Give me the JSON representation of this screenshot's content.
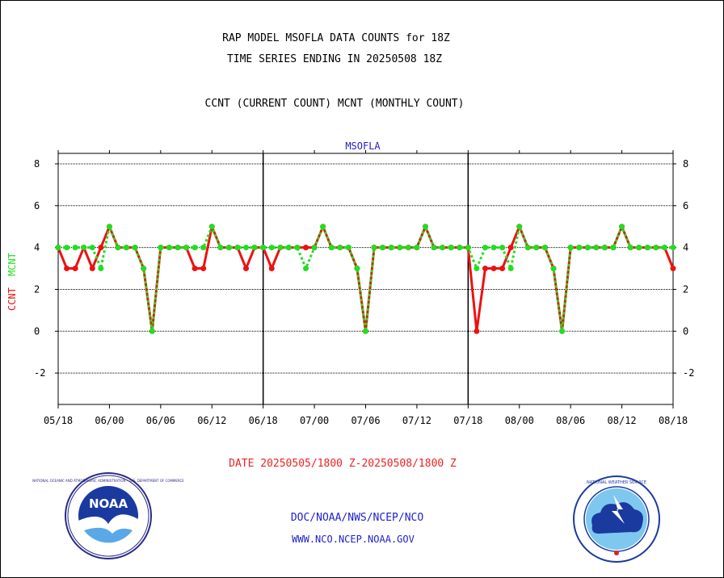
{
  "header": {
    "line1": "RAP MODEL MSOFLA DATA COUNTS for 18Z",
    "line2": "TIME SERIES ENDING IN 20250508 18Z",
    "line3": "CCNT (CURRENT COUNT) MCNT (MONTHLY COUNT)"
  },
  "footer": {
    "date_range": "DATE 20250505/1800 Z-20250508/1800 Z",
    "org_path": "DOC/NOAA/NWS/NCEP/NCO",
    "website": "WWW.NCO.NCEP.NOAA.GOV"
  },
  "logos": {
    "noaa_text": "NOAA",
    "noaa_ring": "NATIONAL OCEANIC AND ATMOSPHERIC ADMINISTRATION • U.S. DEPARTMENT OF COMMERCE",
    "nws_ring": "NATIONAL WEATHER SERVICE"
  },
  "colors": {
    "ccnt": "#ee1111",
    "mcnt": "#22dd22",
    "title_blue": "#2020cc",
    "date_red": "#ee2222"
  },
  "chart_data": {
    "type": "line",
    "title": "MSOFLA",
    "ylabel_series": [
      "CCNT",
      "MCNT"
    ],
    "ylim": [
      -3.5,
      8.5
    ],
    "yticks": [
      8,
      6,
      4,
      2,
      0,
      -2
    ],
    "xlim": [
      0,
      72
    ],
    "xticks": [
      0,
      6,
      12,
      18,
      24,
      30,
      36,
      42,
      48,
      54,
      60,
      66,
      72
    ],
    "xtick_labels": [
      "05/18",
      "06/00",
      "06/06",
      "06/12",
      "06/18",
      "07/00",
      "07/06",
      "07/12",
      "07/18",
      "08/00",
      "08/06",
      "08/12",
      "08/18"
    ],
    "grid": true,
    "day_separators": [
      24,
      48
    ],
    "series": [
      {
        "name": "CCNT",
        "x": [
          0,
          1,
          2,
          3,
          4,
          5,
          6,
          7,
          8,
          9,
          10,
          11,
          12,
          13,
          14,
          15,
          16,
          17,
          18,
          19,
          20,
          21,
          22,
          23,
          24,
          25,
          26,
          27,
          28,
          29,
          30,
          31,
          32,
          33,
          34,
          35,
          36,
          37,
          38,
          39,
          40,
          41,
          42,
          43,
          44,
          45,
          46,
          47,
          48,
          49,
          50,
          51,
          52,
          53,
          54,
          55,
          56,
          57,
          58,
          59,
          60,
          61,
          62,
          63,
          64,
          65,
          66,
          67,
          68,
          69,
          70,
          71,
          72
        ],
        "values": [
          4,
          3,
          3,
          4,
          3,
          4,
          5,
          4,
          4,
          4,
          3,
          0,
          4,
          4,
          4,
          4,
          3,
          3,
          5,
          4,
          4,
          4,
          3,
          4,
          4,
          3,
          4,
          4,
          4,
          4,
          4,
          5,
          4,
          4,
          4,
          3,
          0,
          4,
          4,
          4,
          4,
          4,
          4,
          5,
          4,
          4,
          4,
          4,
          4,
          0,
          3,
          3,
          3,
          4,
          5,
          4,
          4,
          4,
          3,
          0,
          4,
          4,
          4,
          4,
          4,
          4,
          5,
          4,
          4,
          4,
          4,
          4,
          3
        ]
      },
      {
        "name": "MCNT",
        "x": [
          0,
          1,
          2,
          3,
          4,
          5,
          6,
          7,
          8,
          9,
          10,
          11,
          12,
          13,
          14,
          15,
          16,
          17,
          18,
          19,
          20,
          21,
          22,
          23,
          24,
          25,
          26,
          27,
          28,
          29,
          30,
          31,
          32,
          33,
          34,
          35,
          36,
          37,
          38,
          39,
          40,
          41,
          42,
          43,
          44,
          45,
          46,
          47,
          48,
          49,
          50,
          51,
          52,
          53,
          54,
          55,
          56,
          57,
          58,
          59,
          60,
          61,
          62,
          63,
          64,
          65,
          66,
          67,
          68,
          69,
          70,
          71,
          72
        ],
        "values": [
          4,
          4,
          4,
          4,
          4,
          3,
          5,
          4,
          4,
          4,
          3,
          0,
          4,
          4,
          4,
          4,
          4,
          4,
          5,
          4,
          4,
          4,
          4,
          4,
          4,
          4,
          4,
          4,
          4,
          3,
          4,
          5,
          4,
          4,
          4,
          3,
          0,
          4,
          4,
          4,
          4,
          4,
          4,
          5,
          4,
          4,
          4,
          4,
          4,
          3,
          4,
          4,
          4,
          3,
          5,
          4,
          4,
          4,
          3,
          0,
          4,
          4,
          4,
          4,
          4,
          4,
          5,
          4,
          4,
          4,
          4,
          4,
          4
        ]
      }
    ]
  }
}
